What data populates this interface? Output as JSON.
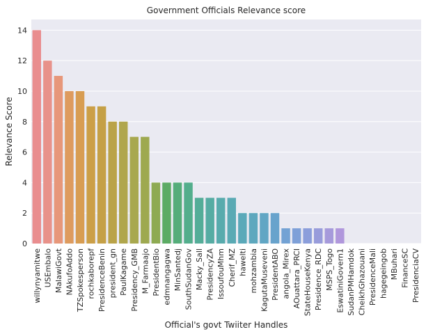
{
  "chart_data": {
    "type": "bar",
    "title": "Government Officials Relevance score",
    "xlabel": "Official's govt Twiiter Handles",
    "ylabel": "Relevance Score",
    "ylim": [
      0,
      14.7
    ],
    "yticks": [
      0,
      2,
      4,
      6,
      8,
      10,
      12,
      14
    ],
    "grid": true,
    "legend": "none",
    "categories": [
      "willynyamitwe",
      "USEmbalo",
      "MalawiGovt",
      "NAkufoAddo",
      "TZSpokesperson",
      "rochkaborepf",
      "PresidenceBenin",
      "president_gn",
      "PaulKagame",
      "Presidency_GMB",
      "M_Farmaajo",
      "PresidentBio",
      "edmnangagwa",
      "MinSantedj",
      "SouthSudanGov",
      "Macky_Sall",
      "PresidencyZA",
      "IssoufouMhm",
      "Cherif_MZ",
      "hawelti",
      "mohzambia",
      "KagutaMuseveni",
      "PresidentABO",
      "angola_Mirex",
      "AOuattara_PRCI",
      "StateHouseKenya",
      "Presidence_RDC",
      "MSPS_Togo",
      "EswatiniGovern1",
      "SudanPMHamdok",
      "CheikhGhazouani",
      "PresidenceMali",
      "hagegeingob",
      "MBuhari",
      "FinanceSC",
      "PresidenciaCV"
    ],
    "values": [
      14,
      12,
      11,
      10,
      10,
      9,
      9,
      8,
      8,
      7,
      7,
      4,
      4,
      4,
      4,
      3,
      3,
      3,
      3,
      2,
      2,
      2,
      2,
      1,
      1,
      1,
      1,
      1,
      1,
      0,
      0,
      0,
      0,
      0,
      0,
      0
    ],
    "colors": [
      "#e98d8f",
      "#e8928a",
      "#e7977a",
      "#de9b5e",
      "#d89d52",
      "#cc9f47",
      "#c5a046",
      "#baa348",
      "#b0a64c",
      "#a8a84f",
      "#9ea950",
      "#8eaa52",
      "#5cab64",
      "#55ad7a",
      "#53ae8c",
      "#54ad98",
      "#56aca3",
      "#58abad",
      "#5aaab4",
      "#5ba9b9",
      "#5ea8be",
      "#61a6c4",
      "#68a3cc",
      "#73a2d4",
      "#7ea0d8",
      "#8b9edb",
      "#989cdb",
      "#a69adb",
      "#b097dc",
      "#c093dc",
      "#cc91d8",
      "#d98fd3",
      "#e28dcb",
      "#e68dbc",
      "#e88dad",
      "#e98d9d"
    ],
    "background_color": "#eaeaf2",
    "grid_color": "#ffffff"
  }
}
